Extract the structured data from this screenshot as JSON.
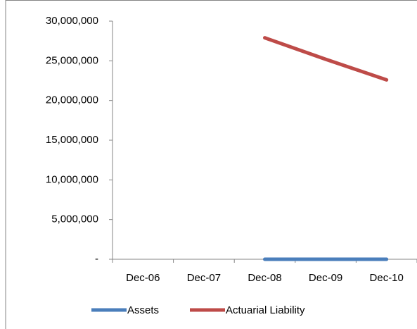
{
  "chart_data": {
    "type": "line",
    "categories": [
      "Dec-06",
      "Dec-07",
      "Dec-08",
      "Dec-09",
      "Dec-10"
    ],
    "series": [
      {
        "name": "Assets",
        "color": "#4a7ebb",
        "values": [
          null,
          null,
          0,
          0,
          0
        ]
      },
      {
        "name": "Actuarial Liability",
        "color": "#be4b48",
        "values": [
          null,
          null,
          27900000,
          25200000,
          22600000
        ]
      }
    ],
    "ylim": [
      0,
      30000000
    ],
    "yticks": [
      {
        "value": 0,
        "label": "-"
      },
      {
        "value": 5000000,
        "label": "5,000,000"
      },
      {
        "value": 10000000,
        "label": "10,000,000"
      },
      {
        "value": 15000000,
        "label": "15,000,000"
      },
      {
        "value": 20000000,
        "label": "20,000,000"
      },
      {
        "value": 25000000,
        "label": "25,000,000"
      },
      {
        "value": 30000000,
        "label": "30,000,000"
      }
    ],
    "grid": false,
    "legend": "bottom"
  }
}
